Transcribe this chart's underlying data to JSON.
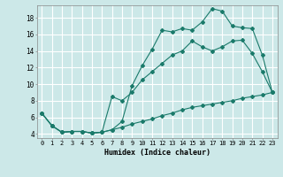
{
  "xlabel": "Humidex (Indice chaleur)",
  "bg_color": "#cce8e8",
  "grid_color": "#ffffff",
  "line_color": "#1a7a6a",
  "xlim": [
    -0.5,
    23.5
  ],
  "ylim": [
    3.5,
    19.5
  ],
  "xticks": [
    0,
    1,
    2,
    3,
    4,
    5,
    6,
    7,
    8,
    9,
    10,
    11,
    12,
    13,
    14,
    15,
    16,
    17,
    18,
    19,
    20,
    21,
    22,
    23
  ],
  "yticks": [
    4,
    6,
    8,
    10,
    12,
    14,
    16,
    18
  ],
  "curve1_x": [
    0,
    1,
    2,
    3,
    4,
    5,
    6,
    7,
    8,
    9,
    10,
    11,
    12,
    13,
    14,
    15,
    16,
    17,
    18,
    19,
    20,
    21,
    22,
    23
  ],
  "curve1_y": [
    6.5,
    5.0,
    4.2,
    4.3,
    4.3,
    4.1,
    4.2,
    4.5,
    5.5,
    9.8,
    12.2,
    14.2,
    16.5,
    16.3,
    16.7,
    16.5,
    17.5,
    19.1,
    18.8,
    17.0,
    16.8,
    16.7,
    13.5,
    9.0
  ],
  "curve2_x": [
    0,
    1,
    2,
    3,
    4,
    5,
    6,
    7,
    8,
    9,
    10,
    11,
    12,
    13,
    14,
    15,
    16,
    17,
    18,
    19,
    20,
    21,
    22,
    23
  ],
  "curve2_y": [
    6.5,
    5.0,
    4.2,
    4.3,
    4.3,
    4.1,
    4.2,
    8.5,
    8.0,
    9.0,
    10.5,
    11.5,
    12.5,
    13.5,
    14.0,
    15.2,
    14.5,
    14.0,
    14.5,
    15.2,
    15.3,
    13.7,
    11.5,
    9.0
  ],
  "curve3_x": [
    0,
    1,
    2,
    3,
    4,
    5,
    6,
    7,
    8,
    9,
    10,
    11,
    12,
    13,
    14,
    15,
    16,
    17,
    18,
    19,
    20,
    21,
    22,
    23
  ],
  "curve3_y": [
    6.5,
    5.0,
    4.2,
    4.3,
    4.3,
    4.1,
    4.2,
    4.5,
    4.8,
    5.2,
    5.5,
    5.8,
    6.2,
    6.5,
    6.9,
    7.2,
    7.4,
    7.6,
    7.8,
    8.0,
    8.3,
    8.5,
    8.7,
    9.0
  ],
  "xtick_fontsize": 5.0,
  "ytick_fontsize": 5.5,
  "xlabel_fontsize": 6.0
}
